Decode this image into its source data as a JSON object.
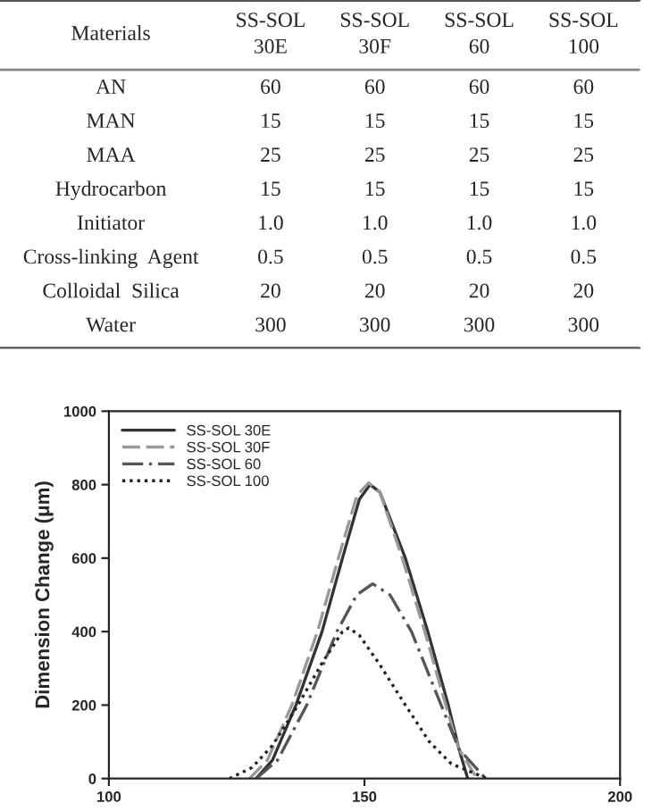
{
  "chart_data": [
    {
      "type": "other",
      "categories": [
        "Materials",
        "SS-SOL\n30E",
        "SS-SOL\n30F",
        "SS-SOL\n60",
        "SS-SOL\n100"
      ],
      "y_categories": [
        "AN",
        "MAN",
        "MAA",
        "Hydrocarbon",
        "Initiator",
        "Cross-linking  Agent",
        "Colloidal  Silica",
        "Water"
      ],
      "cell_labels": [
        [
          "60",
          "60",
          "60",
          "60"
        ],
        [
          "15",
          "15",
          "15",
          "15"
        ],
        [
          "25",
          "25",
          "25",
          "25"
        ],
        [
          "15",
          "15",
          "15",
          "15"
        ],
        [
          "1.0",
          "1.0",
          "1.0",
          "1.0"
        ],
        [
          "0.5",
          "0.5",
          "0.5",
          "0.5"
        ],
        [
          "20",
          "20",
          "20",
          "20"
        ],
        [
          "300",
          "300",
          "300",
          "300"
        ]
      ]
    },
    {
      "type": "line",
      "ylabel": "Dimension Change (μm)",
      "xlim": [
        100,
        200
      ],
      "xticks": [
        100,
        150,
        200
      ],
      "ylim": [
        0,
        1000
      ],
      "yticks": [
        0,
        200,
        400,
        600,
        800,
        1000
      ],
      "grid": false,
      "legend": "top left",
      "marker": "none",
      "series": [
        {
          "name": "SS-SOL 30E",
          "color": "#333333",
          "line_style": "solid",
          "x": [
            128.8,
            132,
            136.6,
            141.7,
            145.7,
            149,
            151.1,
            153,
            158,
            162.4,
            166.4,
            168.5,
            170.2
          ],
          "values": [
            0,
            50,
            200,
            400,
            600,
            760,
            800,
            780,
            600,
            400,
            200,
            80,
            0
          ]
        },
        {
          "name": "SS-SOL 30F",
          "color": "#999999",
          "line_style": "dashed",
          "x": [
            127.5,
            131,
            135.8,
            140.8,
            144.9,
            148.5,
            150.8,
            153,
            157.4,
            161.8,
            165.9,
            168.5,
            172
          ],
          "values": [
            0,
            50,
            200,
            400,
            600,
            770,
            805,
            780,
            600,
            400,
            200,
            80,
            0
          ]
        },
        {
          "name": "SS-SOL 60",
          "color": "#555555",
          "line_style": "dashdot",
          "x": [
            128.8,
            133,
            138.7,
            144.6,
            148.5,
            151.6,
            155,
            159.2,
            165,
            168.5,
            173.7
          ],
          "values": [
            0,
            50,
            200,
            400,
            500,
            530,
            500,
            400,
            200,
            80,
            0
          ]
        },
        {
          "name": "SS-SOL 100",
          "color": "#222222",
          "line_style": "dotted",
          "x": [
            123.6,
            128,
            132,
            137,
            141.5,
            145.7,
            146.9,
            149,
            153,
            158,
            162.7,
            167,
            174
          ],
          "values": [
            0,
            30,
            90,
            200,
            310,
            400,
            410,
            390,
            310,
            200,
            100,
            40,
            0
          ]
        }
      ]
    }
  ]
}
